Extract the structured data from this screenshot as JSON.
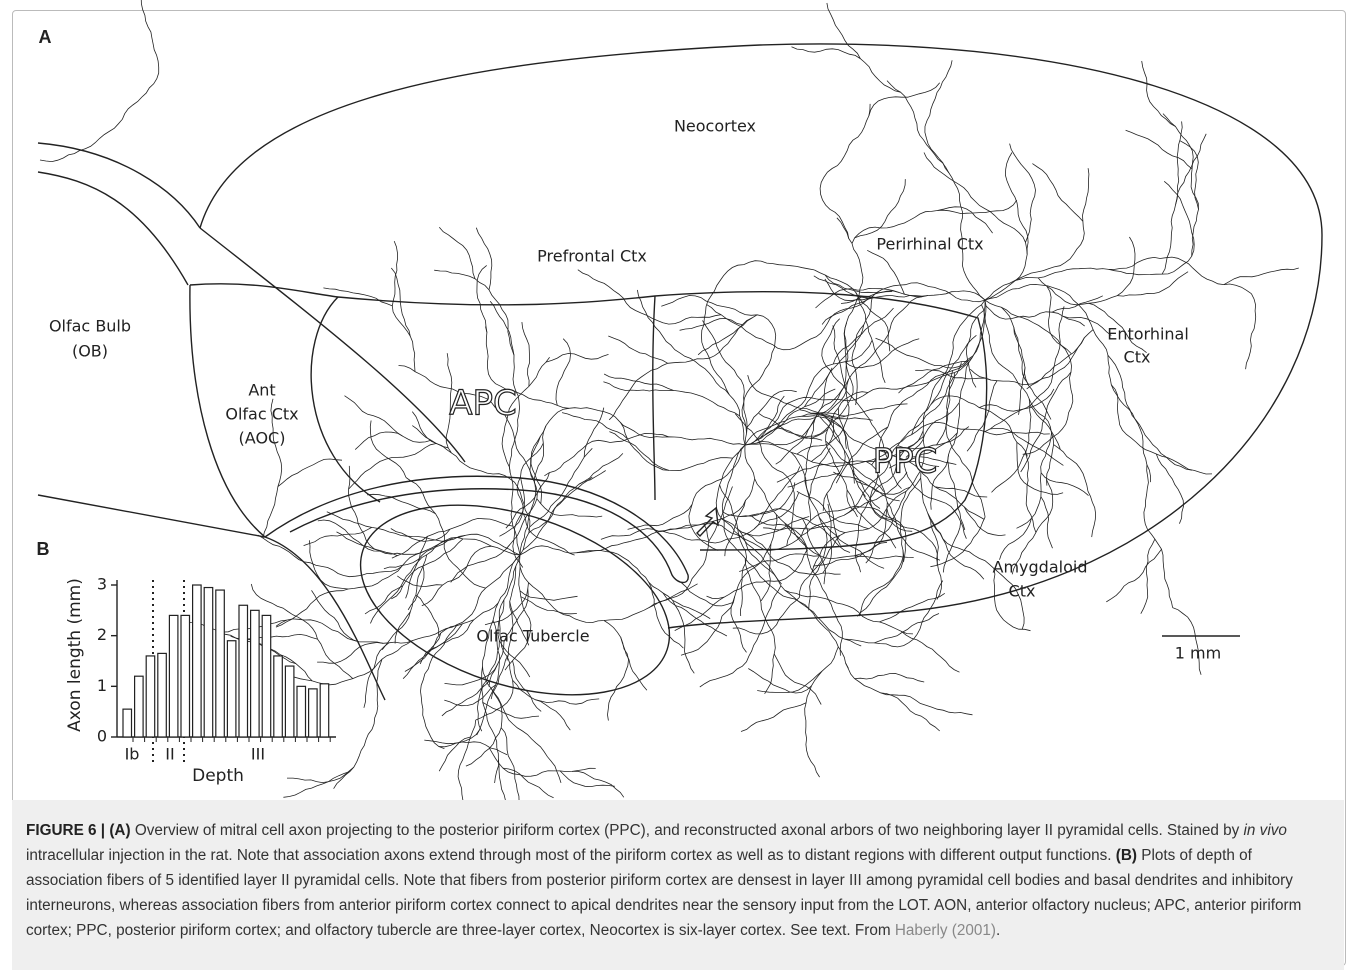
{
  "panel_a": {
    "label": "A",
    "regions": {
      "neocortex": "Neocortex",
      "prefrontal": "Prefrontal Ctx",
      "perirhinal": "Perirhinal Ctx",
      "olfac_bulb": [
        "Olfac Bulb",
        "(OB)"
      ],
      "entorhinal": [
        "Entorhinal",
        "Ctx"
      ],
      "aoc": [
        "Ant",
        "Olfac Ctx",
        "(AOC)"
      ],
      "apc": "APC",
      "ppc": "PPC",
      "amygdaloid": [
        "Amygdaloid",
        "Ctx"
      ],
      "olfac_tubercle": "Olfac Tubercle"
    },
    "scale_bar": "1 mm"
  },
  "chart_data": {
    "type": "bar",
    "panel_label": "B",
    "ylabel": "Axon length (mm)",
    "xlabel": "Depth",
    "layer_labels": [
      "Ib",
      "II",
      "III"
    ],
    "values": [
      0.55,
      1.2,
      1.6,
      1.65,
      2.4,
      2.4,
      3.0,
      2.95,
      2.9,
      1.9,
      2.6,
      2.5,
      2.4,
      1.6,
      1.4,
      1.0,
      0.95,
      1.05
    ],
    "ylim": [
      0,
      3.1
    ],
    "yticks": [
      0,
      1,
      2,
      3
    ],
    "color": "#ffffff"
  },
  "caption": {
    "figure_label": "FIGURE 6 |",
    "a_label": "(A)",
    "a_text": " Overview of mitral cell axon projecting to the posterior piriform cortex (PPC), and reconstructed axonal arbors of two neighboring layer II pyramidal cells. Stained by ",
    "italic": "in vivo",
    "a_text_2": " intracellular injection in the rat. Note that association axons extend through most of the piriform cortex as well as to distant regions with different output functions. ",
    "b_label": "(B)",
    "b_text": " Plots of depth of association fibers of 5 identified layer II pyramidal cells. Note that fibers from posterior piriform cortex are densest in layer III among pyramidal cell bodies and basal dendrites and inhibitory interneurons, whereas association fibers from anterior piriform cortex connect to apical dendrites near the sensory input from the LOT. AON, anterior olfactory nucleus; APC, anterior piriform cortex; PPC, posterior piriform cortex; and olfactory tubercle are three-layer cortex, Neocortex is six-layer cortex. See text. From ",
    "citation": "Haberly (2001)",
    "end": "."
  }
}
